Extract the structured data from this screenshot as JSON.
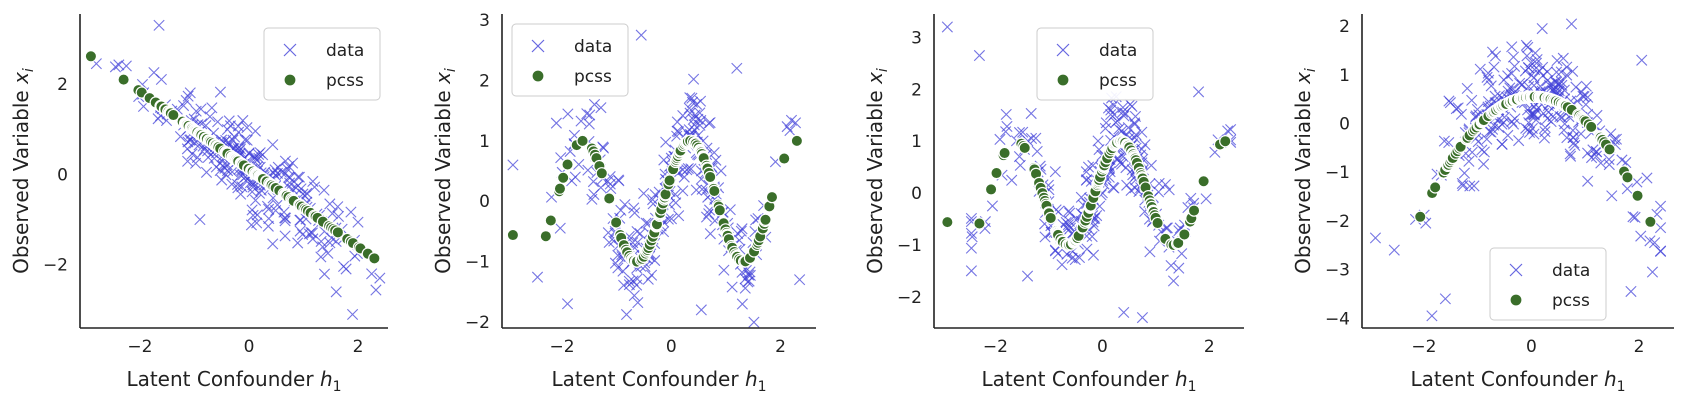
{
  "chart_data": [
    {
      "type": "scatter",
      "series": [
        {
          "name": "data"
        },
        {
          "name": "pcss"
        }
      ],
      "xlabel": "Latent Confounder",
      "xlabel_symbol": "h",
      "xlabel_sub": "1",
      "ylabel": "Observed Variable",
      "ylabel_symbol": "x",
      "ylabel_sub": "i",
      "xlim": [
        -3.1,
        2.55
      ],
      "ylim": [
        -3.4,
        3.55
      ],
      "xticks": [
        -2,
        0,
        2
      ],
      "yticks": [
        -2,
        0,
        2
      ],
      "legend": "top-right",
      "grid": false,
      "curve": "linear",
      "curve_params": {
        "slope": -0.86,
        "intercept": 0.12
      },
      "data_noise": 0.42,
      "data_outliers": [
        [
          -1.65,
          3.3
        ],
        [
          -2.8,
          2.45
        ],
        [
          -2.25,
          2.4
        ],
        [
          -0.9,
          -1.0
        ],
        [
          0.8,
          0.25
        ],
        [
          1.9,
          -3.1
        ],
        [
          2.25,
          -2.2
        ],
        [
          1.6,
          -2.6
        ]
      ]
    },
    {
      "type": "scatter",
      "series": [
        {
          "name": "data"
        },
        {
          "name": "pcss"
        }
      ],
      "xlabel": "Latent Confounder",
      "xlabel_symbol": "h",
      "xlabel_sub": "1",
      "ylabel": "Observed Variable",
      "ylabel_symbol": "x",
      "ylabel_sub": "i",
      "xlim": [
        -3.1,
        2.65
      ],
      "ylim": [
        -2.1,
        3.1
      ],
      "xticks": [
        -2,
        0,
        2
      ],
      "yticks": [
        -2,
        -1,
        0,
        1,
        2,
        3
      ],
      "legend": "top-left",
      "grid": false,
      "curve": "wave",
      "curve_params": {
        "amp": 1.0,
        "freq": 3.2,
        "phase": 0.45
      },
      "data_noise": 0.45,
      "data_outliers": [
        [
          -0.55,
          2.75
        ],
        [
          -2.9,
          0.6
        ],
        [
          2.35,
          -1.3
        ],
        [
          1.2,
          2.2
        ],
        [
          -1.9,
          -1.7
        ],
        [
          0.55,
          -1.8
        ]
      ]
    },
    {
      "type": "scatter",
      "series": [
        {
          "name": "data"
        },
        {
          "name": "pcss"
        }
      ],
      "xlabel": "Latent Confounder",
      "xlabel_symbol": "h",
      "xlabel_sub": "1",
      "ylabel": "Observed Variable",
      "ylabel_symbol": "x",
      "ylabel_sub": "i",
      "xlim": [
        -3.15,
        2.65
      ],
      "ylim": [
        -2.6,
        3.45
      ],
      "xticks": [
        -2,
        0,
        2
      ],
      "yticks": [
        -2,
        -1,
        0,
        1,
        2,
        3
      ],
      "legend": "top-center",
      "grid": false,
      "curve": "wave",
      "curve_params": {
        "amp": 1.0,
        "freq": 3.2,
        "phase": 0.45
      },
      "data_noise": 0.45,
      "data_outliers": [
        [
          -2.9,
          3.2
        ],
        [
          -2.3,
          2.65
        ],
        [
          0.4,
          -2.3
        ],
        [
          0.75,
          -2.4
        ],
        [
          1.8,
          1.95
        ],
        [
          -1.4,
          -1.6
        ]
      ]
    },
    {
      "type": "scatter",
      "series": [
        {
          "name": "data"
        },
        {
          "name": "pcss"
        }
      ],
      "xlabel": "Latent Confounder",
      "xlabel_symbol": "h",
      "xlabel_sub": "1",
      "ylabel": "Observed Variable",
      "ylabel_symbol": "x",
      "ylabel_sub": "i",
      "xlim": [
        -3.15,
        2.65
      ],
      "ylim": [
        -4.2,
        2.25
      ],
      "xticks": [
        -2,
        0,
        2
      ],
      "yticks": [
        -4,
        -3,
        -2,
        -1,
        0,
        1,
        2
      ],
      "legend": "bottom-center",
      "grid": false,
      "curve": "parabola",
      "curve_params": {
        "a": -0.55,
        "vertex": 0.05,
        "peak": 0.55
      },
      "data_noise": 0.5,
      "data_outliers": [
        [
          0.2,
          1.95
        ],
        [
          2.05,
          1.3
        ],
        [
          -2.9,
          -2.35
        ],
        [
          -1.85,
          -3.95
        ],
        [
          -1.6,
          -3.6
        ],
        [
          1.85,
          -3.45
        ],
        [
          2.25,
          -3.05
        ],
        [
          -2.55,
          -2.6
        ]
      ]
    }
  ]
}
